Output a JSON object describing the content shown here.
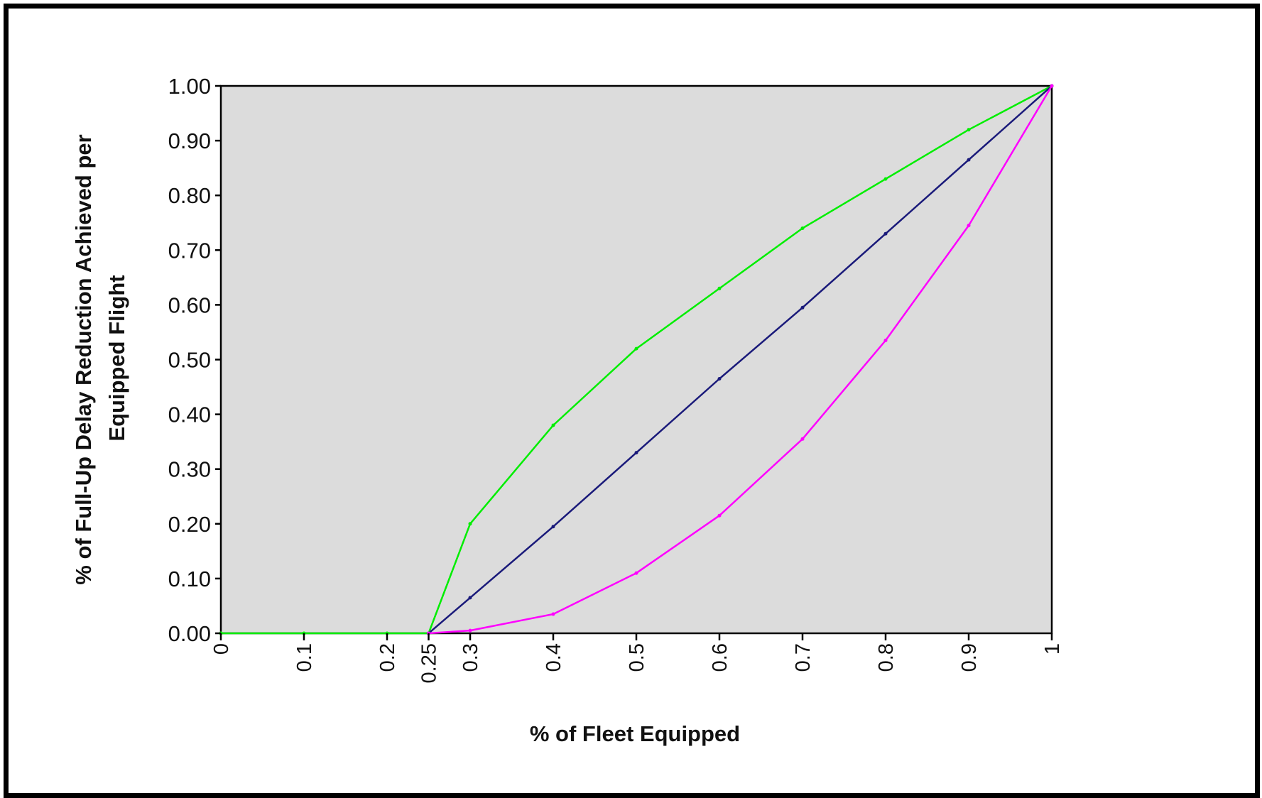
{
  "chart_data": {
    "type": "line",
    "title": "",
    "xlabel": "% of Fleet Equipped",
    "ylabel_line1": "% of Full-Up Delay Reduction Achieved per",
    "ylabel_line2": "Equipped Flight",
    "xlim": [
      0,
      1
    ],
    "ylim": [
      0,
      1
    ],
    "x_ticks": [
      0,
      0.1,
      0.2,
      0.25,
      0.3,
      0.4,
      0.5,
      0.6,
      0.7,
      0.8,
      0.9,
      1
    ],
    "x_tick_labels": [
      "0",
      "0.1",
      "0.2",
      "0.25",
      "0.3",
      "0.4",
      "0.5",
      "0.6",
      "0.7",
      "0.8",
      "0.9",
      "1"
    ],
    "y_ticks": [
      0,
      0.1,
      0.2,
      0.3,
      0.4,
      0.5,
      0.6,
      0.7,
      0.8,
      0.9,
      1.0
    ],
    "y_tick_labels": [
      "0.00",
      "0.10",
      "0.20",
      "0.30",
      "0.40",
      "0.50",
      "0.60",
      "0.70",
      "0.80",
      "0.90",
      "1.00"
    ],
    "grid": false,
    "legend": "none",
    "plot_background": "#dcdcdc",
    "series": [
      {
        "color": "#00ee00",
        "x": [
          0,
          0.1,
          0.2,
          0.25,
          0.3,
          0.4,
          0.5,
          0.6,
          0.7,
          0.8,
          0.9,
          1
        ],
        "y": [
          0,
          0,
          0,
          0,
          0.2,
          0.38,
          0.52,
          0.63,
          0.74,
          0.83,
          0.92,
          1.0
        ]
      },
      {
        "color": "#1a1a7a",
        "x": [
          0.25,
          0.3,
          0.4,
          0.5,
          0.6,
          0.7,
          0.8,
          0.9,
          1
        ],
        "y": [
          0,
          0.065,
          0.195,
          0.33,
          0.465,
          0.595,
          0.73,
          0.865,
          1.0
        ]
      },
      {
        "color": "#ff00ff",
        "x": [
          0.25,
          0.3,
          0.4,
          0.5,
          0.6,
          0.7,
          0.8,
          0.9,
          1
        ],
        "y": [
          0,
          0.005,
          0.035,
          0.11,
          0.215,
          0.355,
          0.535,
          0.745,
          1.0
        ]
      }
    ]
  }
}
